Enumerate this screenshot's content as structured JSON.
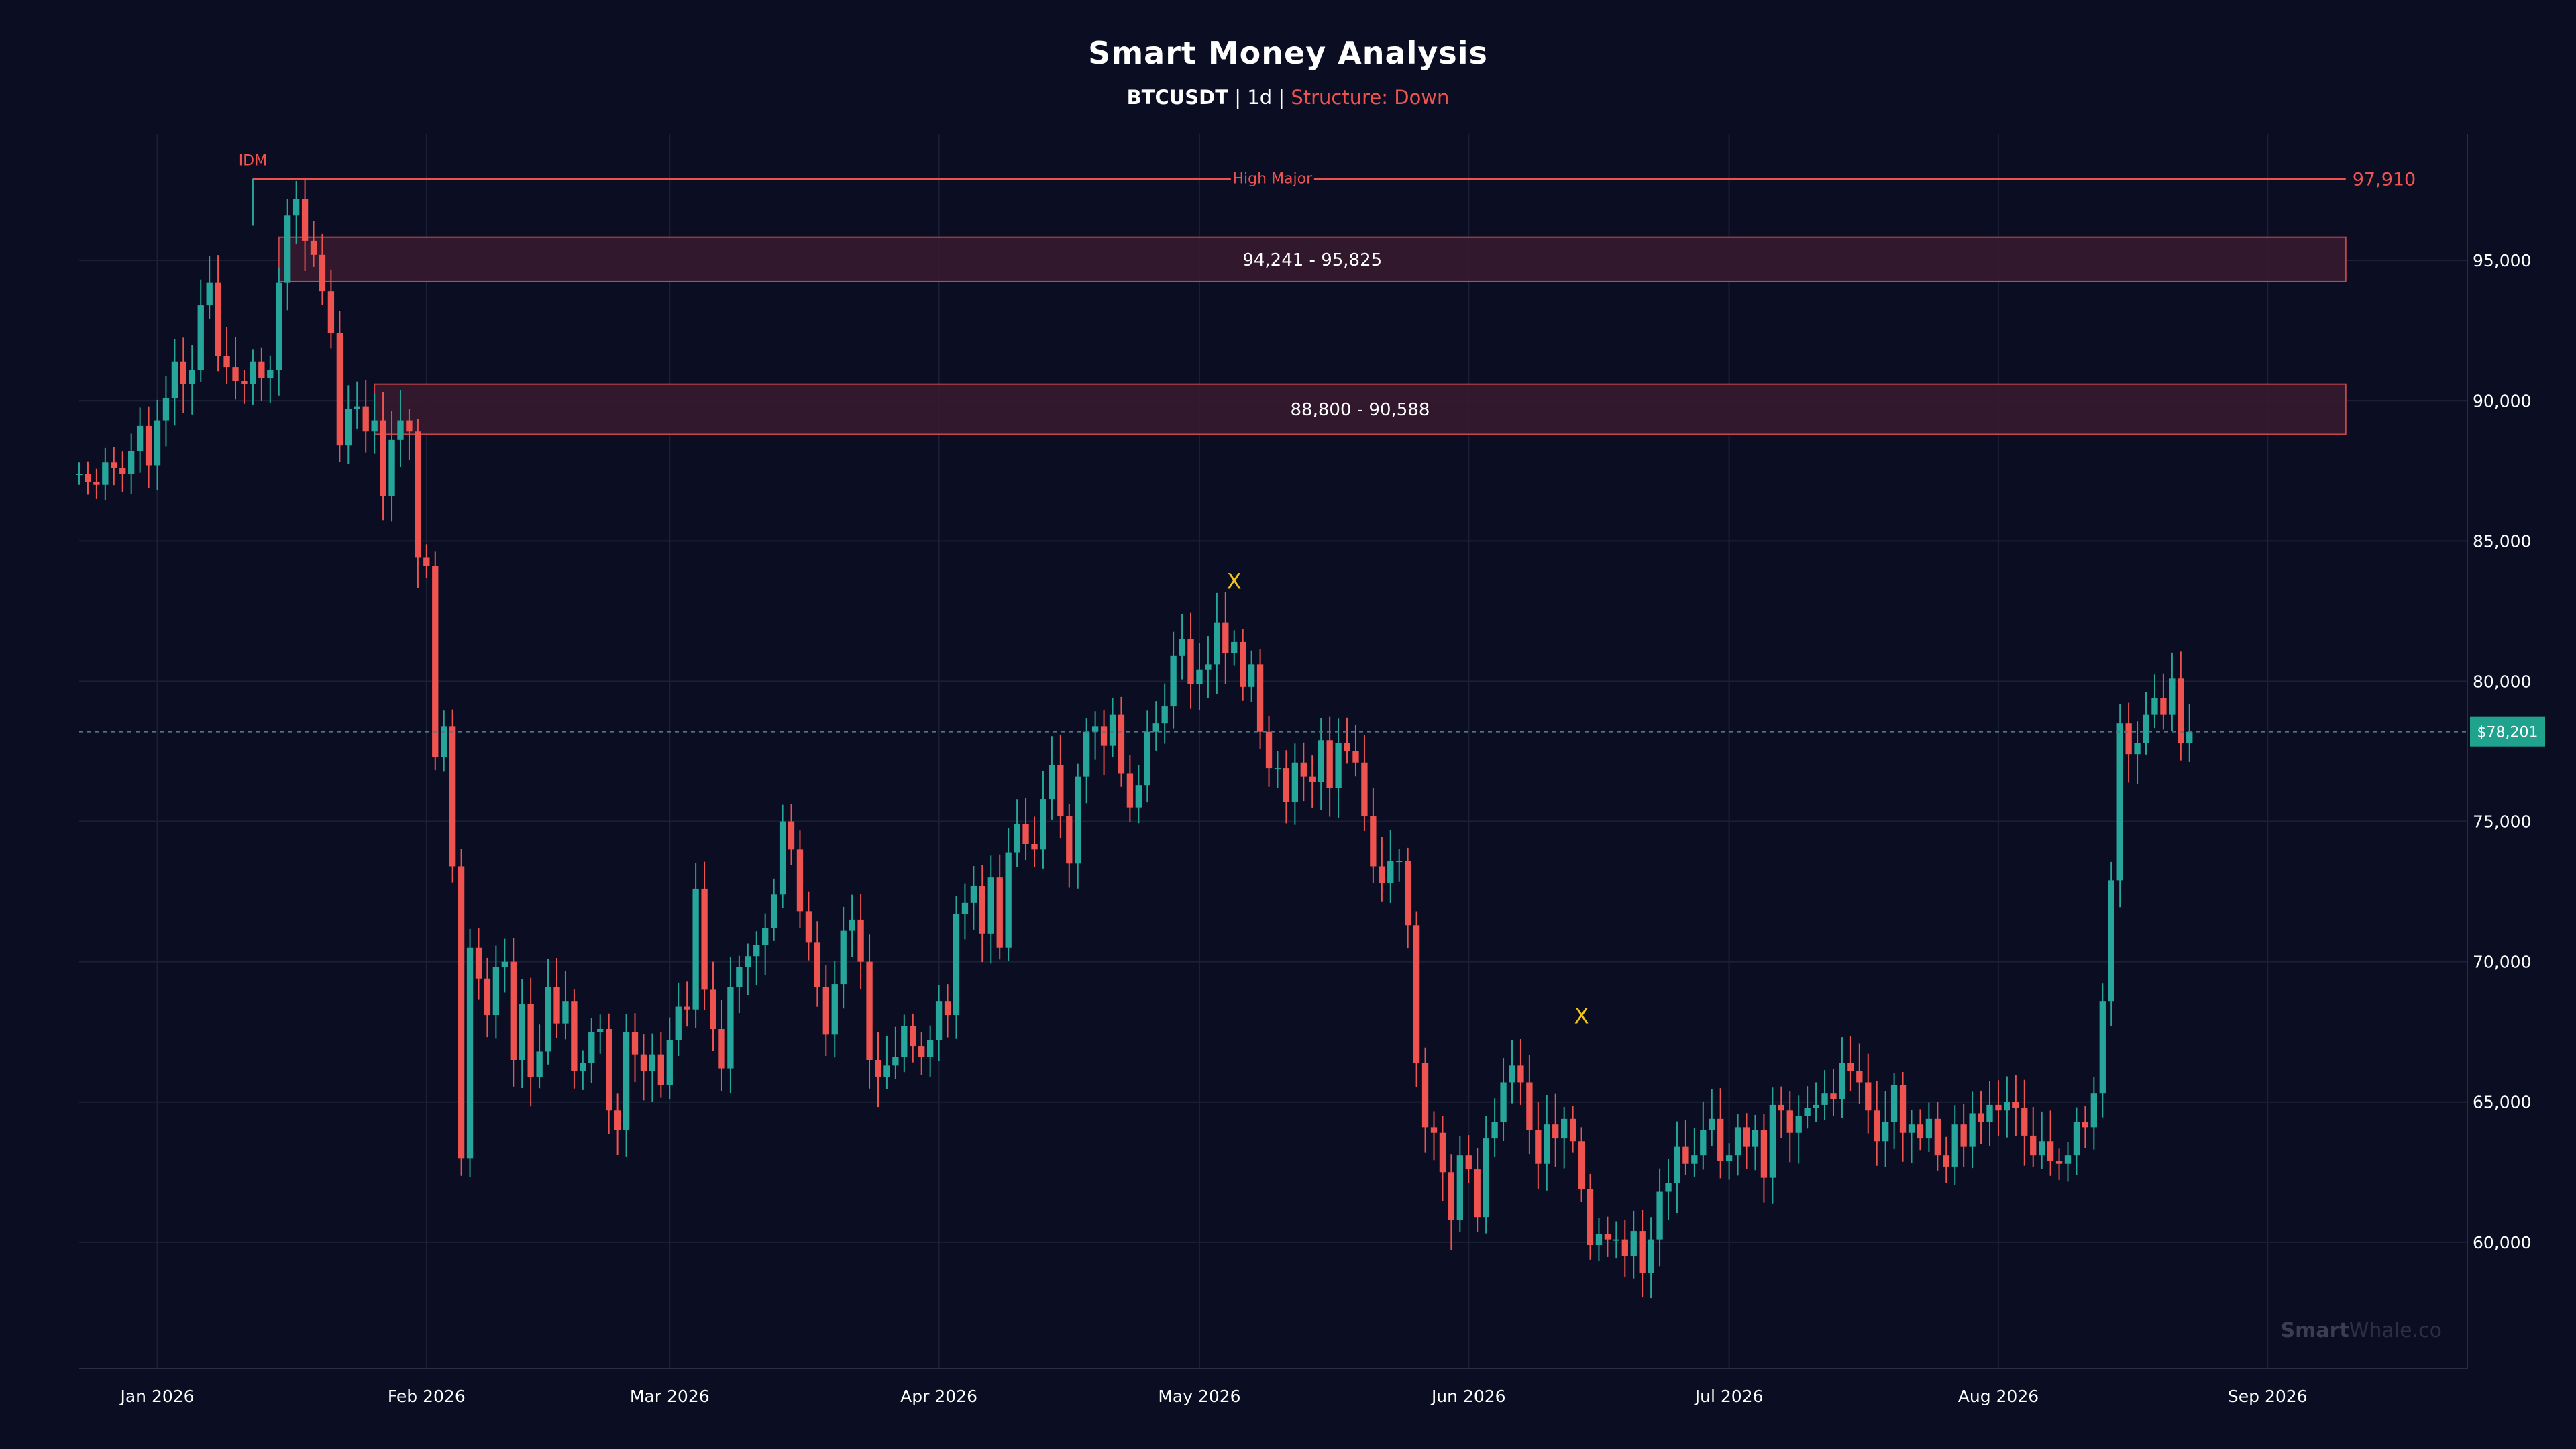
{
  "chart_data": {
    "type": "candlestick",
    "title": "Smart Money Analysis",
    "subtitle": {
      "symbol": "BTCUSDT",
      "sep1": " | ",
      "timeframe": "1d",
      "sep2": " | ",
      "structure": "Structure: Down"
    },
    "x_range": [
      "2025-12-23",
      "2026-09-24"
    ],
    "y_range": [
      55500,
      99500
    ],
    "x_tick_labels": [
      {
        "date": "2026-01-01",
        "label": "Jan 2026"
      },
      {
        "date": "2026-02-01",
        "label": "Feb 2026"
      },
      {
        "date": "2026-03-01",
        "label": "Mar 2026"
      },
      {
        "date": "2026-04-01",
        "label": "Apr 2026"
      },
      {
        "date": "2026-05-01",
        "label": "May 2026"
      },
      {
        "date": "2026-06-01",
        "label": "Jun 2026"
      },
      {
        "date": "2026-07-01",
        "label": "Jul 2026"
      },
      {
        "date": "2026-08-01",
        "label": "Aug 2026"
      },
      {
        "date": "2026-09-01",
        "label": "Sep 2026"
      }
    ],
    "y_tick_labels": [
      {
        "value": 60000,
        "label": "60,000"
      },
      {
        "value": 65000,
        "label": "65,000"
      },
      {
        "value": 70000,
        "label": "70,000"
      },
      {
        "value": 75000,
        "label": "75,000"
      },
      {
        "value": 80000,
        "label": "80,000"
      },
      {
        "value": 85000,
        "label": "85,000"
      },
      {
        "value": 90000,
        "label": "90,000"
      },
      {
        "value": 95000,
        "label": "95,000"
      }
    ],
    "grid": true,
    "y_axis_position": "right",
    "first_date": "2025-12-23",
    "closes": [
      87400,
      87100,
      87000,
      87800,
      87600,
      87400,
      88200,
      89100,
      87700,
      89300,
      90100,
      91400,
      90600,
      91100,
      93400,
      94200,
      91600,
      91200,
      90700,
      90600,
      91400,
      90800,
      91100,
      94200,
      96600,
      97200,
      95700,
      95200,
      93900,
      92400,
      88400,
      89700,
      89800,
      88900,
      89300,
      86600,
      88600,
      89300,
      88900,
      84400,
      84100,
      77300,
      78400,
      73400,
      63000,
      70500,
      69400,
      68100,
      69800,
      70000,
      66500,
      68500,
      65900,
      66800,
      69100,
      67800,
      68600,
      66100,
      66400,
      67500,
      67600,
      64700,
      64000,
      67500,
      66700,
      66100,
      66700,
      65600,
      67200,
      68400,
      68300,
      72600,
      69000,
      67600,
      66200,
      69100,
      69800,
      70200,
      70600,
      71200,
      72400,
      75000,
      74000,
      71800,
      70700,
      69100,
      67400,
      69200,
      71100,
      71500,
      70000,
      66500,
      65900,
      66300,
      66600,
      67700,
      67000,
      66600,
      67200,
      68600,
      68100,
      71700,
      72100,
      72700,
      71000,
      73000,
      70500,
      73900,
      74900,
      74200,
      74000,
      75800,
      77000,
      75200,
      73500,
      76600,
      78200,
      78400,
      77700,
      78800,
      76700,
      75500,
      76300,
      78200,
      78500,
      79100,
      80900,
      81500,
      79900,
      80400,
      80600,
      82100,
      81000,
      81400,
      79800,
      80600,
      78200,
      76900,
      76900,
      75700,
      77100,
      76600,
      76400,
      77900,
      76200,
      77800,
      77500,
      77100,
      75200,
      73400,
      72800,
      73600,
      73600,
      71300,
      66400,
      64100,
      63900,
      62500,
      60800,
      63100,
      62600,
      60900,
      63700,
      64300,
      65700,
      66300,
      65700,
      64000,
      62800,
      64200,
      63700,
      64400,
      63600,
      61900,
      59900,
      60300,
      60100,
      60100,
      59500,
      60400,
      58900,
      60100,
      61800,
      62100,
      63400,
      62800,
      63100,
      64000,
      64400,
      62900,
      63100,
      64100,
      63400,
      64000,
      62300,
      64900,
      64700,
      63900,
      64500,
      64800,
      64900,
      65300,
      65100,
      66400,
      66100,
      65700,
      64700,
      63600,
      64300,
      65600,
      63900,
      64200,
      63700,
      64400,
      63100,
      62700,
      64200,
      63400,
      64600,
      64300,
      64900,
      64700,
      65000,
      64800,
      63800,
      63100,
      63600,
      62900,
      62800,
      63100,
      64300,
      64100,
      65300,
      68600,
      72900,
      78500,
      77400,
      77800,
      78800,
      79400,
      78800,
      80100,
      77800,
      78200
    ],
    "zones": [
      {
        "label": "94,241 - 95,825",
        "low": 94241,
        "high": 95825,
        "start": "2026-01-15",
        "end": "2026-09-10"
      },
      {
        "label": "88,800 - 90,588",
        "low": 88800,
        "high": 90588,
        "start": "2026-01-26",
        "end": "2026-09-10"
      }
    ],
    "high_major": {
      "label": "High Major",
      "price": 97910,
      "price_label": "97,910",
      "start": "2026-01-12",
      "end": "2026-09-10"
    },
    "idm": {
      "label": "IDM",
      "date": "2026-01-12"
    },
    "x_marks": [
      {
        "label": "X",
        "date": "2026-05-05",
        "price": 83300
      },
      {
        "label": "X",
        "date": "2026-06-14",
        "price": 67800
      }
    ],
    "last_price": {
      "value": 78201,
      "label": "$78,201"
    },
    "colors": {
      "up": "#26a69a",
      "down": "#ef5350",
      "background": "#0b0e23",
      "zone_fill": "#3a1a2e",
      "zone_border": "#ef5350",
      "last_price": "#1fa38e",
      "x_mark": "#f5c518"
    }
  },
  "watermark": {
    "bold": "Smart",
    "light": "Whale.co"
  }
}
